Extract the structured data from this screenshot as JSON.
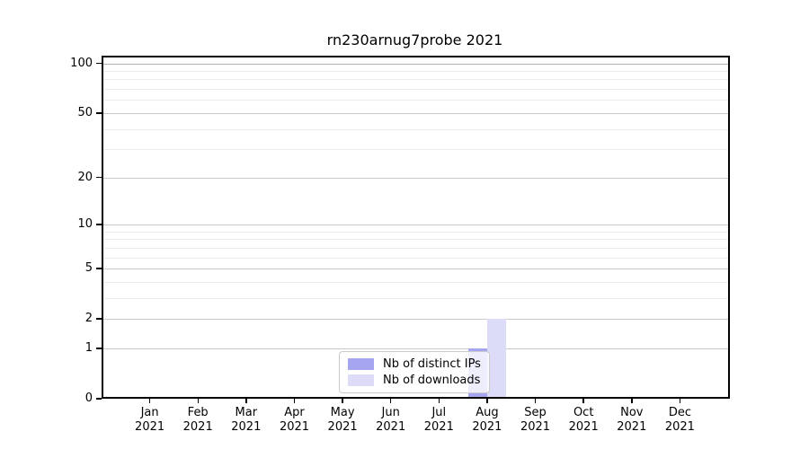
{
  "chart_data": {
    "type": "bar",
    "title": "rn230arnug7probe 2021",
    "x_tick_months": [
      "Jan",
      "Feb",
      "Mar",
      "Apr",
      "May",
      "Jun",
      "Jul",
      "Aug",
      "Sep",
      "Oct",
      "Nov",
      "Dec"
    ],
    "x_tick_year": "2021",
    "categories": [
      "Jan 2021",
      "Feb 2021",
      "Mar 2021",
      "Apr 2021",
      "May 2021",
      "Jun 2021",
      "Jul 2021",
      "Aug 2021",
      "Sep 2021",
      "Oct 2021",
      "Nov 2021",
      "Dec 2021"
    ],
    "series": [
      {
        "name": "Nb of distinct IPs",
        "color": "#a5a5f0",
        "values": [
          0,
          0,
          0,
          0,
          0,
          0,
          0,
          1,
          0,
          0,
          0,
          0
        ]
      },
      {
        "name": "Nb of downloads",
        "color": "#dcdcf8",
        "values": [
          0,
          0,
          0,
          0,
          0,
          0,
          0,
          2,
          0,
          0,
          0,
          0
        ]
      }
    ],
    "y_axis": {
      "scale": "log1p",
      "major_ticks": [
        0,
        1,
        2,
        5,
        10,
        20,
        50,
        100
      ],
      "minor_ticks": [
        3,
        4,
        6,
        7,
        8,
        9,
        30,
        40,
        60,
        70,
        80,
        90
      ],
      "range": [
        0,
        111
      ]
    },
    "legend": {
      "position": "lower center"
    },
    "grid": "on",
    "colors": {
      "spine": "#000000",
      "grid_major": "#c9c9c9",
      "grid_minor": "#ececec",
      "background": "#ffffff"
    }
  }
}
